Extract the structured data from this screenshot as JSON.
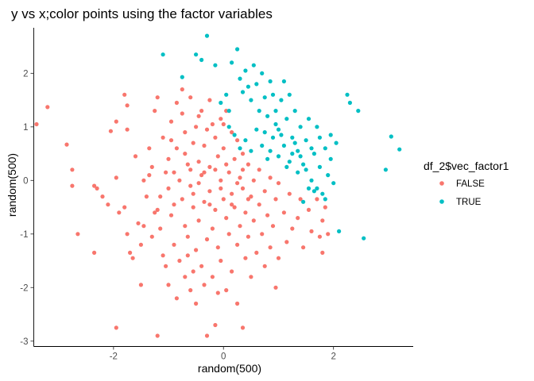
{
  "chart_data": {
    "type": "scatter",
    "title": "y vs x;color points using the factor variables",
    "xlabel": "random(500)",
    "ylabel": "random(500)",
    "xlim": [
      -3.45,
      3.45
    ],
    "ylim": [
      -3.1,
      2.85
    ],
    "x_ticks": [
      -2,
      0,
      2
    ],
    "y_ticks": [
      -3,
      -2,
      -1,
      0,
      1,
      2
    ],
    "x_tick_labels": [
      "-2",
      "0",
      "2"
    ],
    "y_tick_labels": [
      "-3",
      "-2",
      "-1",
      "0",
      "1",
      "2"
    ],
    "grid": false,
    "legend": {
      "title": "df_2$vec_factor1",
      "position": "right"
    },
    "series": [
      {
        "name": "FALSE",
        "color": "#F8766D",
        "points": [
          [
            -3.4,
            1.05
          ],
          [
            -3.2,
            1.37
          ],
          [
            -2.85,
            0.67
          ],
          [
            -2.75,
            0.2
          ],
          [
            -2.75,
            -0.1
          ],
          [
            -2.65,
            -1.0
          ],
          [
            -2.35,
            -0.1
          ],
          [
            -2.3,
            -0.15
          ],
          [
            -2.35,
            -1.35
          ],
          [
            -2.2,
            -0.3
          ],
          [
            -2.1,
            -0.45
          ],
          [
            -2.05,
            0.92
          ],
          [
            -1.95,
            1.1
          ],
          [
            -1.95,
            0.05
          ],
          [
            -1.9,
            -0.6
          ],
          [
            -1.95,
            -2.75
          ],
          [
            -1.8,
            1.6
          ],
          [
            -1.75,
            1.4
          ],
          [
            -1.75,
            0.95
          ],
          [
            -1.8,
            -0.5
          ],
          [
            -1.75,
            -1.0
          ],
          [
            -1.7,
            -1.35
          ],
          [
            -1.65,
            -1.45
          ],
          [
            -1.6,
            0.45
          ],
          [
            -1.55,
            -0.8
          ],
          [
            -1.5,
            -1.2
          ],
          [
            -1.5,
            -1.95
          ],
          [
            -1.45,
            0.0
          ],
          [
            -1.4,
            -0.3
          ],
          [
            -1.35,
            0.6
          ],
          [
            -1.3,
            0.25
          ],
          [
            -1.3,
            -1.05
          ],
          [
            -1.25,
            1.3
          ],
          [
            -1.2,
            -0.55
          ],
          [
            -1.2,
            1.55
          ],
          [
            -1.15,
            -0.9
          ],
          [
            -1.2,
            -2.9
          ],
          [
            -1.1,
            0.8
          ],
          [
            -1.1,
            -1.4
          ],
          [
            -1.05,
            -1.6
          ],
          [
            -1.0,
            0.4
          ],
          [
            -1.0,
            -0.15
          ],
          [
            -1.0,
            -1.95
          ],
          [
            -0.95,
            1.1
          ],
          [
            -0.95,
            -0.65
          ],
          [
            -0.9,
            0.15
          ],
          [
            -0.9,
            -1.2
          ],
          [
            -0.85,
            0.6
          ],
          [
            -0.85,
            -2.2
          ],
          [
            -0.8,
            -1.5
          ],
          [
            -0.75,
            1.25
          ],
          [
            -0.75,
            -0.35
          ],
          [
            -0.7,
            0.9
          ],
          [
            -0.7,
            -0.85
          ],
          [
            -0.7,
            -1.8
          ],
          [
            -0.65,
            0.3
          ],
          [
            -0.65,
            -1.05
          ],
          [
            -0.6,
            1.55
          ],
          [
            -0.6,
            -0.1
          ],
          [
            -0.6,
            -2.05
          ],
          [
            -0.55,
            0.7
          ],
          [
            -0.55,
            -0.5
          ],
          [
            -0.5,
            1.0
          ],
          [
            -0.5,
            -1.3
          ],
          [
            -0.5,
            -2.3
          ],
          [
            -0.45,
            0.35
          ],
          [
            -0.45,
            -0.75
          ],
          [
            -0.4,
            1.3
          ],
          [
            -0.4,
            0.1
          ],
          [
            -0.4,
            -1.6
          ],
          [
            -0.35,
            0.65
          ],
          [
            -0.35,
            -0.4
          ],
          [
            -0.3,
            0.95
          ],
          [
            -0.3,
            -1.1
          ],
          [
            -0.3,
            -2.9
          ],
          [
            -0.25,
            1.5
          ],
          [
            -0.25,
            0.25
          ],
          [
            -0.25,
            -0.2
          ],
          [
            -0.2,
            -0.9
          ],
          [
            -0.2,
            -1.8
          ],
          [
            -0.15,
            0.8
          ],
          [
            -0.15,
            -0.55
          ],
          [
            -0.15,
            -2.7
          ],
          [
            -0.1,
            0.45
          ],
          [
            -0.1,
            -1.25
          ],
          [
            -0.05,
            1.15
          ],
          [
            -0.05,
            0.0
          ],
          [
            -0.05,
            -1.5
          ],
          [
            0.0,
            0.6
          ],
          [
            0.0,
            -0.35
          ],
          [
            0.05,
            1.3
          ],
          [
            0.05,
            -0.7
          ],
          [
            0.05,
            -2.05
          ],
          [
            0.1,
            0.15
          ],
          [
            0.1,
            -1.0
          ],
          [
            0.15,
            0.9
          ],
          [
            0.15,
            -0.25
          ],
          [
            0.15,
            -1.7
          ],
          [
            0.2,
            0.4
          ],
          [
            0.2,
            -0.5
          ],
          [
            0.25,
            0.75
          ],
          [
            0.25,
            -1.2
          ],
          [
            0.25,
            -2.3
          ],
          [
            0.3,
            0.05
          ],
          [
            0.3,
            -0.85
          ],
          [
            0.35,
            0.5
          ],
          [
            0.35,
            -0.15
          ],
          [
            0.35,
            -2.75
          ],
          [
            0.4,
            -0.6
          ],
          [
            0.4,
            -1.45
          ],
          [
            0.45,
            0.3
          ],
          [
            0.45,
            -1.05
          ],
          [
            0.5,
            -0.3
          ],
          [
            0.5,
            -1.8
          ],
          [
            0.55,
            0.0
          ],
          [
            0.55,
            -0.75
          ],
          [
            0.6,
            -1.35
          ],
          [
            0.65,
            0.2
          ],
          [
            0.65,
            -0.45
          ],
          [
            0.7,
            -1.0
          ],
          [
            0.75,
            -0.2
          ],
          [
            0.75,
            -1.6
          ],
          [
            0.8,
            -0.65
          ],
          [
            0.85,
            0.05
          ],
          [
            0.85,
            -1.25
          ],
          [
            0.9,
            -0.85
          ],
          [
            0.95,
            -0.35
          ],
          [
            0.95,
            -2.0
          ],
          [
            1.0,
            -0.05
          ],
          [
            1.0,
            -1.45
          ],
          [
            1.1,
            -0.6
          ],
          [
            1.15,
            -1.15
          ],
          [
            1.2,
            -0.25
          ],
          [
            1.25,
            -0.9
          ],
          [
            1.35,
            -0.7
          ],
          [
            1.4,
            -0.35
          ],
          [
            1.45,
            -1.25
          ],
          [
            1.55,
            -0.55
          ],
          [
            1.6,
            -0.95
          ],
          [
            1.7,
            -0.35
          ],
          [
            1.75,
            -1.05
          ],
          [
            1.8,
            -0.75
          ],
          [
            1.8,
            -1.35
          ],
          [
            1.85,
            -0.5
          ],
          [
            1.9,
            -1.0
          ],
          [
            -0.9,
            -0.45
          ],
          [
            -0.8,
            0.0
          ],
          [
            -0.7,
            0.5
          ],
          [
            -0.6,
            0.2
          ],
          [
            -0.55,
            -0.25
          ],
          [
            -0.45,
            -0.05
          ],
          [
            -0.35,
            0.15
          ],
          [
            -0.25,
            -0.45
          ],
          [
            -0.15,
            0.2
          ],
          [
            -0.05,
            -0.15
          ],
          [
            0.05,
            0.3
          ],
          [
            0.15,
            -0.45
          ],
          [
            0.25,
            -0.05
          ],
          [
            0.35,
            0.2
          ],
          [
            0.45,
            -0.35
          ],
          [
            -1.05,
            0.15
          ],
          [
            -1.15,
            -0.3
          ],
          [
            -1.25,
            -0.6
          ],
          [
            -1.35,
            0.1
          ],
          [
            -1.45,
            -0.85
          ],
          [
            -0.95,
            0.75
          ],
          [
            -0.85,
            1.45
          ],
          [
            -0.75,
            1.7
          ],
          [
            -0.65,
            -1.4
          ],
          [
            -0.55,
            -1.7
          ],
          [
            -0.45,
            1.2
          ],
          [
            -0.35,
            -1.95
          ],
          [
            -0.2,
            1.05
          ],
          [
            -0.1,
            -2.1
          ],
          [
            0.0,
            1.05
          ]
        ]
      },
      {
        "name": "TRUE",
        "color": "#00BFC4",
        "points": [
          [
            -1.1,
            2.35
          ],
          [
            -0.75,
            1.93
          ],
          [
            -0.5,
            2.35
          ],
          [
            -0.4,
            2.25
          ],
          [
            -0.3,
            2.7
          ],
          [
            -0.15,
            2.15
          ],
          [
            -0.05,
            1.45
          ],
          [
            0.05,
            1.6
          ],
          [
            0.1,
            1.3
          ],
          [
            0.15,
            2.2
          ],
          [
            0.25,
            2.45
          ],
          [
            0.3,
            1.9
          ],
          [
            0.35,
            1.65
          ],
          [
            0.4,
            2.05
          ],
          [
            0.45,
            1.75
          ],
          [
            0.5,
            1.5
          ],
          [
            0.55,
            2.15
          ],
          [
            0.6,
            1.8
          ],
          [
            0.65,
            1.3
          ],
          [
            0.7,
            2.0
          ],
          [
            0.75,
            1.55
          ],
          [
            0.8,
            1.2
          ],
          [
            0.85,
            1.85
          ],
          [
            0.9,
            1.6
          ],
          [
            0.95,
            1.3
          ],
          [
            1.0,
            0.95
          ],
          [
            1.05,
            1.5
          ],
          [
            1.1,
            1.85
          ],
          [
            1.15,
            1.15
          ],
          [
            1.2,
            1.6
          ],
          [
            1.25,
            0.8
          ],
          [
            1.3,
            1.3
          ],
          [
            1.35,
            0.55
          ],
          [
            1.4,
            1.0
          ],
          [
            1.45,
            0.3
          ],
          [
            1.5,
            0.75
          ],
          [
            1.55,
            1.15
          ],
          [
            1.6,
            0.0
          ],
          [
            1.65,
            0.5
          ],
          [
            1.7,
            1.0
          ],
          [
            1.75,
            0.25
          ],
          [
            1.8,
            -0.25
          ],
          [
            1.85,
            0.6
          ],
          [
            1.9,
            0.1
          ],
          [
            1.95,
            0.4
          ],
          [
            2.0,
            -0.05
          ],
          [
            2.05,
            0.7
          ],
          [
            2.1,
            -0.95
          ],
          [
            2.25,
            1.6
          ],
          [
            2.3,
            1.45
          ],
          [
            2.45,
            1.3
          ],
          [
            2.55,
            -1.08
          ],
          [
            2.95,
            0.2
          ],
          [
            3.05,
            0.82
          ],
          [
            3.2,
            0.58
          ],
          [
            0.1,
            1.0
          ],
          [
            0.2,
            0.85
          ],
          [
            0.3,
            0.6
          ],
          [
            0.4,
            0.75
          ],
          [
            0.5,
            0.55
          ],
          [
            0.6,
            0.95
          ],
          [
            0.7,
            0.65
          ],
          [
            0.8,
            0.4
          ],
          [
            0.9,
            0.8
          ],
          [
            1.0,
            0.45
          ],
          [
            1.1,
            0.65
          ],
          [
            1.2,
            0.35
          ],
          [
            1.3,
            0.7
          ],
          [
            1.4,
            0.45
          ],
          [
            1.5,
            0.2
          ],
          [
            1.6,
            0.6
          ],
          [
            1.7,
            -0.15
          ],
          [
            1.75,
            0.8
          ],
          [
            1.85,
            -0.35
          ],
          [
            1.95,
            0.85
          ],
          [
            1.55,
            -0.15
          ],
          [
            1.65,
            -0.2
          ],
          [
            1.45,
            -0.4
          ],
          [
            1.35,
            0.15
          ],
          [
            1.25,
            0.5
          ],
          [
            0.95,
            1.05
          ],
          [
            0.85,
            0.55
          ],
          [
            0.75,
            0.9
          ],
          [
            1.05,
            0.85
          ],
          [
            1.15,
            0.25
          ]
        ]
      }
    ]
  }
}
